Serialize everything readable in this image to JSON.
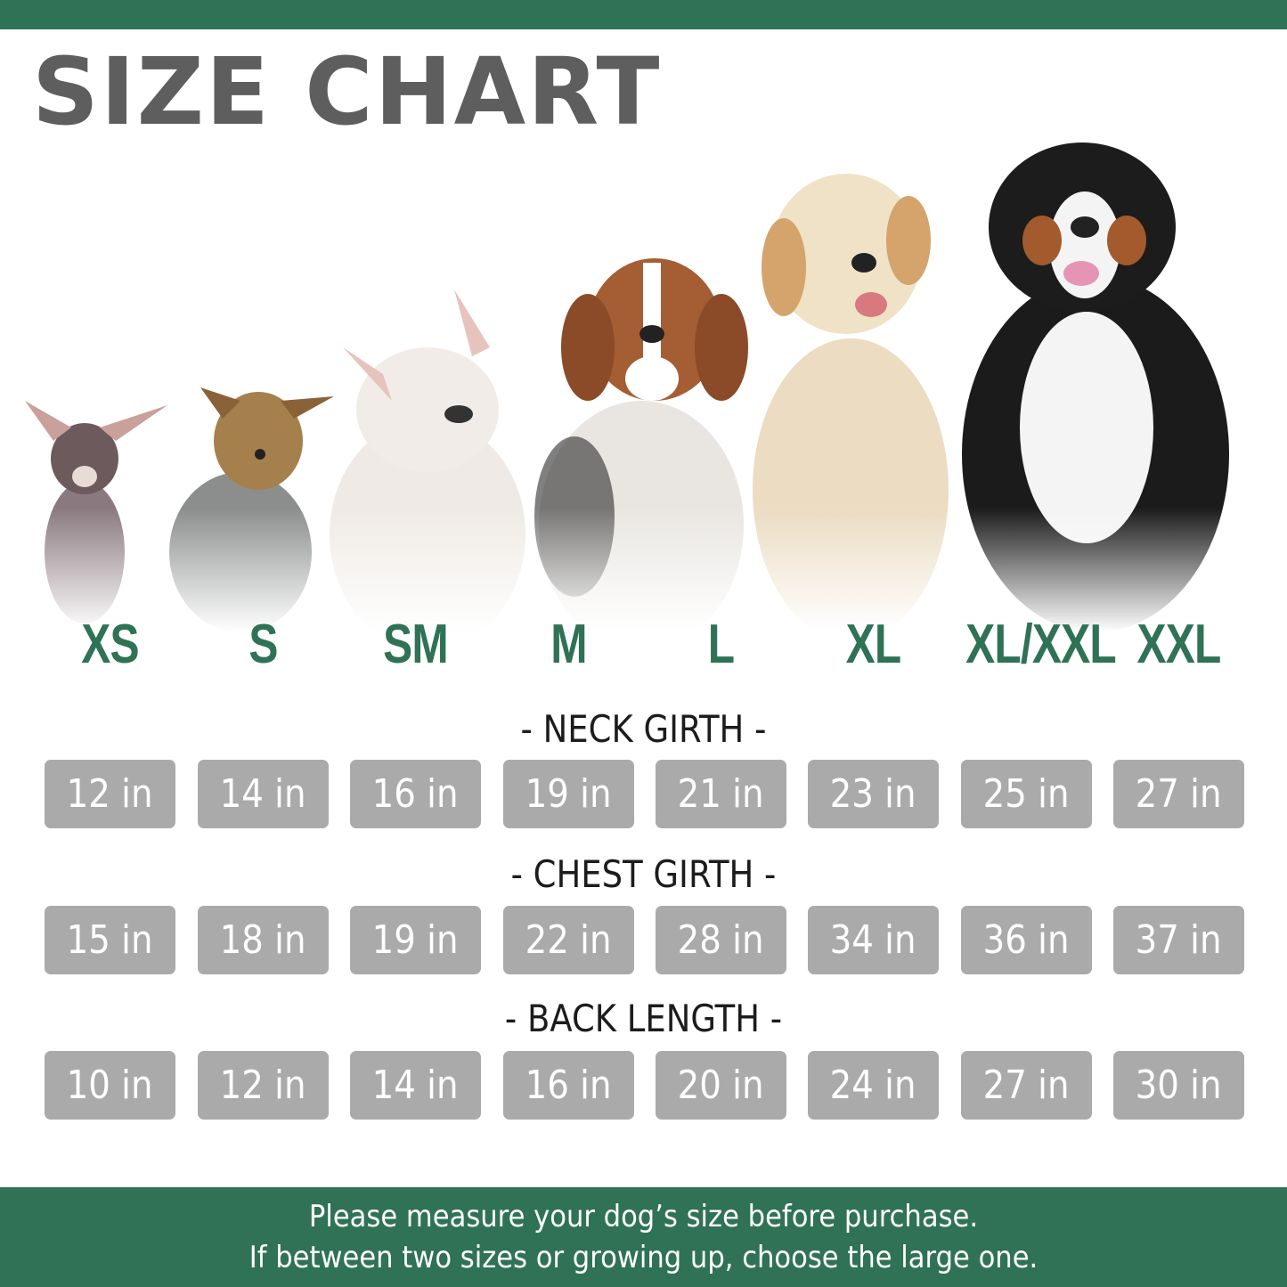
{
  "title": "SIZE CHART",
  "colors": {
    "accent": "#2f7256",
    "box": "#aaaaaa",
    "title": "#5e5e5e"
  },
  "sizes": [
    "XS",
    "S",
    "SM",
    "M",
    "L",
    "XL",
    "XL/XXL",
    "XXL"
  ],
  "sections": [
    {
      "title": "- NECK GIRTH -",
      "values": [
        "12 in",
        "14 in",
        "16 in",
        "19 in",
        "21 in",
        "23 in",
        "25 in",
        "27 in"
      ]
    },
    {
      "title": "- CHEST GIRTH -",
      "values": [
        "15 in",
        "18 in",
        "19 in",
        "22 in",
        "28 in",
        "34 in",
        "36 in",
        "37 in"
      ]
    },
    {
      "title": "- BACK LENGTH -",
      "values": [
        "10 in",
        "12 in",
        "14 in",
        "16 in",
        "20 in",
        "24 in",
        "27 in",
        "30 in"
      ]
    }
  ],
  "dogs": [
    "chihuahua",
    "yorkshire-terrier",
    "french-bulldog",
    "beagle",
    "golden-retriever",
    "bernese-mountain-dog"
  ],
  "footer": {
    "line1": "Please measure your dog’s size before purchase.",
    "line2": "If between two sizes or growing up, choose the large one."
  }
}
